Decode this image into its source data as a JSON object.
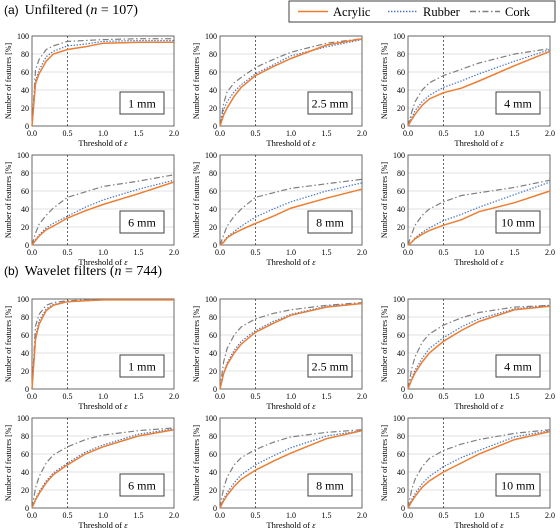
{
  "sections": [
    {
      "prefix": "(a)",
      "title": "Unfiltered (",
      "n_symbol": "n",
      "n_text": " = 107)"
    },
    {
      "prefix": "(b)",
      "title": "Wavelet filters (",
      "n_symbol": "n",
      "n_text": " = 744)"
    }
  ],
  "legend": [
    {
      "name": "Acrylic",
      "color": "#ed7d31",
      "dash": "solid"
    },
    {
      "name": "Rubber",
      "color": "#4472c4",
      "dash": "dotted"
    },
    {
      "name": "Cork",
      "color": "#7f7f7f",
      "dash": "dashed"
    }
  ],
  "axis": {
    "xlabel_prefix": "Threshold of ",
    "xlabel_symbol": "ε",
    "ylabel": "Number of features [%]",
    "xticks": [
      "0.0",
      "0.5",
      "1.0",
      "1.5",
      "2.0"
    ],
    "yticks": [
      "0",
      "20",
      "40",
      "60",
      "80",
      "100"
    ],
    "xlim": [
      0,
      2
    ],
    "ylim": [
      0,
      100
    ],
    "reference_line_x": 0.5
  },
  "chart_data": [
    {
      "type": "line",
      "section": "(a)",
      "label": "1 mm",
      "x": [
        0,
        0.05,
        0.1,
        0.2,
        0.3,
        0.5,
        0.75,
        1.0,
        1.5,
        2.0
      ],
      "series": [
        {
          "name": "Acrylic",
          "values": [
            0,
            47,
            58,
            72,
            80,
            85,
            88,
            92,
            93,
            93
          ]
        },
        {
          "name": "Rubber",
          "values": [
            0,
            50,
            62,
            77,
            83,
            89,
            91,
            94,
            95,
            95
          ]
        },
        {
          "name": "Cork",
          "values": [
            0,
            62,
            74,
            85,
            89,
            94,
            95,
            96,
            97,
            97
          ]
        }
      ]
    },
    {
      "type": "line",
      "section": "(a)",
      "label": "2.5 mm",
      "x": [
        0,
        0.05,
        0.1,
        0.2,
        0.3,
        0.5,
        0.75,
        1.0,
        1.5,
        2.0
      ],
      "series": [
        {
          "name": "Acrylic",
          "values": [
            0,
            12,
            20,
            33,
            43,
            56,
            66,
            75,
            90,
            97
          ]
        },
        {
          "name": "Rubber",
          "values": [
            0,
            18,
            27,
            38,
            46,
            58,
            68,
            78,
            88,
            96
          ]
        },
        {
          "name": "Cork",
          "values": [
            0,
            25,
            38,
            48,
            54,
            65,
            74,
            82,
            92,
            97
          ]
        }
      ]
    },
    {
      "type": "line",
      "section": "(a)",
      "label": "4 mm",
      "x": [
        0,
        0.05,
        0.1,
        0.2,
        0.3,
        0.5,
        0.75,
        1.0,
        1.5,
        2.0
      ],
      "series": [
        {
          "name": "Acrylic",
          "values": [
            0,
            7,
            13,
            23,
            30,
            37,
            42,
            50,
            67,
            83
          ]
        },
        {
          "name": "Rubber",
          "values": [
            0,
            9,
            17,
            27,
            34,
            43,
            50,
            58,
            72,
            85
          ]
        },
        {
          "name": "Cork",
          "values": [
            0,
            15,
            27,
            40,
            48,
            56,
            63,
            70,
            80,
            86
          ]
        }
      ]
    },
    {
      "type": "line",
      "section": "(a)",
      "label": "6 mm",
      "x": [
        0,
        0.05,
        0.1,
        0.2,
        0.3,
        0.5,
        0.75,
        1.0,
        1.5,
        2.0
      ],
      "series": [
        {
          "name": "Acrylic",
          "values": [
            0,
            5,
            10,
            17,
            21,
            30,
            38,
            45,
            57,
            70
          ]
        },
        {
          "name": "Rubber",
          "values": [
            0,
            6,
            11,
            19,
            24,
            32,
            42,
            50,
            62,
            72
          ]
        },
        {
          "name": "Cork",
          "values": [
            0,
            13,
            23,
            33,
            41,
            53,
            59,
            65,
            71,
            78
          ]
        }
      ]
    },
    {
      "type": "line",
      "section": "(a)",
      "label": "8 mm",
      "x": [
        0,
        0.05,
        0.1,
        0.2,
        0.3,
        0.5,
        0.75,
        1.0,
        1.5,
        2.0
      ],
      "series": [
        {
          "name": "Acrylic",
          "values": [
            0,
            3,
            8,
            13,
            17,
            24,
            32,
            41,
            52,
            62
          ]
        },
        {
          "name": "Rubber",
          "values": [
            0,
            4,
            9,
            15,
            21,
            31,
            40,
            48,
            60,
            69
          ]
        },
        {
          "name": "Cork",
          "values": [
            0,
            11,
            21,
            32,
            40,
            53,
            58,
            63,
            68,
            73
          ]
        }
      ]
    },
    {
      "type": "line",
      "section": "(a)",
      "label": "10 mm",
      "x": [
        0,
        0.05,
        0.1,
        0.2,
        0.3,
        0.5,
        0.75,
        1.0,
        1.5,
        2.0
      ],
      "series": [
        {
          "name": "Acrylic",
          "values": [
            0,
            3,
            7,
            12,
            16,
            22,
            28,
            37,
            47,
            60
          ]
        },
        {
          "name": "Rubber",
          "values": [
            0,
            3,
            8,
            14,
            19,
            27,
            34,
            42,
            56,
            70
          ]
        },
        {
          "name": "Cork",
          "values": [
            0,
            12,
            22,
            33,
            40,
            48,
            55,
            58,
            64,
            72
          ]
        }
      ]
    },
    {
      "type": "line",
      "section": "(b)",
      "label": "1 mm",
      "x": [
        0,
        0.05,
        0.1,
        0.2,
        0.3,
        0.5,
        0.75,
        1.0,
        1.5,
        2.0
      ],
      "series": [
        {
          "name": "Acrylic",
          "values": [
            0,
            55,
            72,
            87,
            93,
            97,
            98,
            99,
            99,
            99
          ]
        },
        {
          "name": "Rubber",
          "values": [
            0,
            58,
            76,
            89,
            94,
            97,
            98,
            99,
            99,
            99
          ]
        },
        {
          "name": "Cork",
          "values": [
            0,
            70,
            83,
            93,
            96,
            98,
            99,
            99,
            99,
            99
          ]
        }
      ]
    },
    {
      "type": "line",
      "section": "(b)",
      "label": "2.5 mm",
      "x": [
        0,
        0.05,
        0.1,
        0.2,
        0.3,
        0.5,
        0.75,
        1.0,
        1.5,
        2.0
      ],
      "series": [
        {
          "name": "Acrylic",
          "values": [
            0,
            17,
            27,
            40,
            50,
            63,
            73,
            82,
            91,
            95
          ]
        },
        {
          "name": "Rubber",
          "values": [
            0,
            18,
            29,
            43,
            53,
            65,
            75,
            83,
            92,
            95
          ]
        },
        {
          "name": "Cork",
          "values": [
            0,
            30,
            45,
            60,
            69,
            78,
            84,
            88,
            93,
            96
          ]
        }
      ]
    },
    {
      "type": "line",
      "section": "(b)",
      "label": "4 mm",
      "x": [
        0,
        0.05,
        0.1,
        0.2,
        0.3,
        0.5,
        0.75,
        1.0,
        1.5,
        2.0
      ],
      "series": [
        {
          "name": "Acrylic",
          "values": [
            0,
            10,
            18,
            30,
            40,
            53,
            65,
            75,
            88,
            92
          ]
        },
        {
          "name": "Rubber",
          "values": [
            0,
            12,
            21,
            34,
            45,
            57,
            69,
            78,
            89,
            93
          ]
        },
        {
          "name": "Cork",
          "values": [
            0,
            22,
            36,
            52,
            61,
            71,
            79,
            85,
            91,
            93
          ]
        }
      ]
    },
    {
      "type": "line",
      "section": "(b)",
      "label": "6 mm",
      "x": [
        0,
        0.05,
        0.1,
        0.2,
        0.3,
        0.5,
        0.75,
        1.0,
        1.5,
        2.0
      ],
      "series": [
        {
          "name": "Acrylic",
          "values": [
            0,
            9,
            16,
            28,
            37,
            48,
            60,
            68,
            80,
            87
          ]
        },
        {
          "name": "Rubber",
          "values": [
            0,
            10,
            18,
            30,
            39,
            50,
            62,
            70,
            82,
            88
          ]
        },
        {
          "name": "Cork",
          "values": [
            0,
            22,
            35,
            50,
            59,
            68,
            76,
            81,
            86,
            89
          ]
        }
      ]
    },
    {
      "type": "line",
      "section": "(b)",
      "label": "8 mm",
      "x": [
        0,
        0.05,
        0.1,
        0.2,
        0.3,
        0.5,
        0.75,
        1.0,
        1.5,
        2.0
      ],
      "series": [
        {
          "name": "Acrylic",
          "values": [
            0,
            8,
            14,
            24,
            32,
            42,
            52,
            61,
            77,
            86
          ]
        },
        {
          "name": "Rubber",
          "values": [
            0,
            10,
            17,
            28,
            37,
            48,
            58,
            67,
            80,
            86
          ]
        },
        {
          "name": "Cork",
          "values": [
            0,
            22,
            34,
            48,
            56,
            65,
            73,
            79,
            84,
            87
          ]
        }
      ]
    },
    {
      "type": "line",
      "section": "(b)",
      "label": "10 mm",
      "x": [
        0,
        0.05,
        0.1,
        0.2,
        0.3,
        0.5,
        0.75,
        1.0,
        1.5,
        2.0
      ],
      "series": [
        {
          "name": "Acrylic",
          "values": [
            0,
            7,
            13,
            23,
            30,
            40,
            50,
            60,
            76,
            85
          ]
        },
        {
          "name": "Rubber",
          "values": [
            0,
            9,
            16,
            27,
            35,
            46,
            56,
            64,
            79,
            86
          ]
        },
        {
          "name": "Cork",
          "values": [
            0,
            20,
            32,
            46,
            55,
            64,
            71,
            76,
            83,
            87
          ]
        }
      ]
    }
  ]
}
